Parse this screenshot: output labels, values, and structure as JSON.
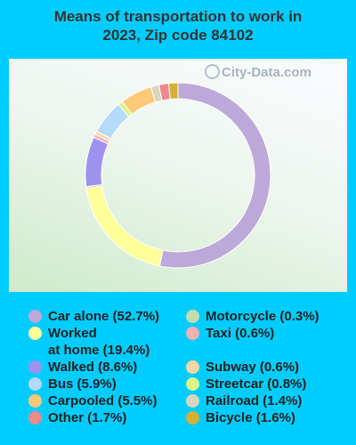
{
  "title_line1": "Means of transportation to work in",
  "title_line2": "2023, Zip code 84102",
  "watermark": "City-Data.com",
  "chart_data": {
    "type": "pie",
    "title": "Means of transportation to work in 2023, Zip code 84102",
    "slices": [
      {
        "label": "Car alone",
        "value": 52.7,
        "color": "#bca9d9"
      },
      {
        "label": "Worked at home",
        "value": 19.4,
        "color": "#ffff99"
      },
      {
        "label": "Walked",
        "value": 8.6,
        "color": "#9f91ee"
      },
      {
        "label": "Bus",
        "value": 5.9,
        "color": "#b4dafc"
      },
      {
        "label": "Carpooled",
        "value": 5.5,
        "color": "#ffc978"
      },
      {
        "label": "Other",
        "value": 1.7,
        "color": "#ee8a8a"
      },
      {
        "label": "Motorcycle",
        "value": 0.3,
        "color": "#c4dcad"
      },
      {
        "label": "Taxi",
        "value": 0.6,
        "color": "#f2b2b2"
      },
      {
        "label": "Subway",
        "value": 0.6,
        "color": "#fcd6a6"
      },
      {
        "label": "Streetcar",
        "value": 0.8,
        "color": "#d8f58a"
      },
      {
        "label": "Railroad",
        "value": 1.4,
        "color": "#d9d6bd"
      },
      {
        "label": "Bicycle",
        "value": 1.6,
        "color": "#d4b034"
      }
    ],
    "slice_order": [
      "Car alone",
      "Worked at home",
      "Motorcycle",
      "Walked",
      "Taxi",
      "Subway",
      "Bus",
      "Streetcar",
      "Carpooled",
      "Railroad",
      "Other",
      "Bicycle"
    ]
  },
  "legend": {
    "left": [
      {
        "lines": [
          "Car alone (52.7%)"
        ],
        "color": "#bca9d9"
      },
      {
        "lines": [
          "Worked",
          "at home (19.4%)"
        ],
        "color": "#ffff99"
      },
      {
        "lines": [
          "Walked (8.6%)"
        ],
        "color": "#9f91ee"
      },
      {
        "lines": [
          "Bus (5.9%)"
        ],
        "color": "#b4dafc"
      },
      {
        "lines": [
          "Carpooled (5.5%)"
        ],
        "color": "#ffc978"
      },
      {
        "lines": [
          "Other (1.7%)"
        ],
        "color": "#ee8a8a"
      }
    ],
    "right": [
      {
        "lines": [
          "Motorcycle (0.3%)"
        ],
        "color": "#c4dcad"
      },
      {
        "lines": [
          "Taxi (0.6%)"
        ],
        "color": "#f2b2b2"
      },
      {
        "lines": [
          ""
        ],
        "color": ""
      },
      {
        "lines": [
          "Subway (0.6%)"
        ],
        "color": "#fcd6a6"
      },
      {
        "lines": [
          "Streetcar (0.8%)"
        ],
        "color": "#d8f58a"
      },
      {
        "lines": [
          "Railroad (1.4%)"
        ],
        "color": "#d9d6bd"
      },
      {
        "lines": [
          "Bicycle (1.6%)"
        ],
        "color": "#d4b034"
      }
    ]
  }
}
